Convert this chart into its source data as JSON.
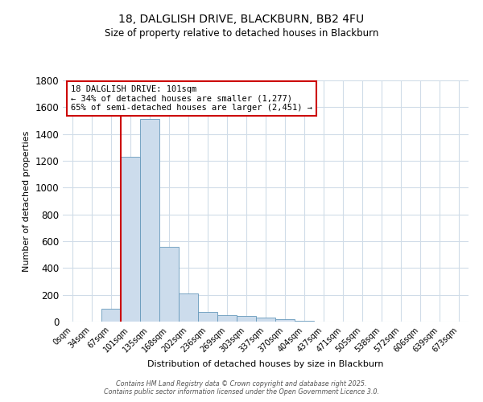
{
  "title1": "18, DALGLISH DRIVE, BLACKBURN, BB2 4FU",
  "title2": "Size of property relative to detached houses in Blackburn",
  "xlabel": "Distribution of detached houses by size in Blackburn",
  "ylabel": "Number of detached properties",
  "bar_labels": [
    "0sqm",
    "34sqm",
    "67sqm",
    "101sqm",
    "135sqm",
    "168sqm",
    "202sqm",
    "236sqm",
    "269sqm",
    "303sqm",
    "337sqm",
    "370sqm",
    "404sqm",
    "437sqm",
    "471sqm",
    "505sqm",
    "538sqm",
    "572sqm",
    "606sqm",
    "639sqm",
    "673sqm"
  ],
  "bar_values": [
    0,
    0,
    95,
    1230,
    1510,
    560,
    210,
    70,
    50,
    40,
    30,
    20,
    5,
    2,
    1,
    1,
    0,
    0,
    0,
    0,
    0
  ],
  "bar_color": "#ccdcec",
  "bar_edge_color": "#6699bb",
  "vline_bar_index": 3,
  "vline_color": "#cc0000",
  "annotation_text": "18 DALGLISH DRIVE: 101sqm\n← 34% of detached houses are smaller (1,277)\n65% of semi-detached houses are larger (2,451) →",
  "annotation_box_edgecolor": "#cc0000",
  "annotation_facecolor": "#ffffff",
  "ylim": [
    0,
    1800
  ],
  "yticks": [
    0,
    200,
    400,
    600,
    800,
    1000,
    1200,
    1400,
    1600,
    1800
  ],
  "bg_color": "#ffffff",
  "grid_color": "#d0dce8",
  "footer1": "Contains HM Land Registry data © Crown copyright and database right 2025.",
  "footer2": "Contains public sector information licensed under the Open Government Licence 3.0."
}
